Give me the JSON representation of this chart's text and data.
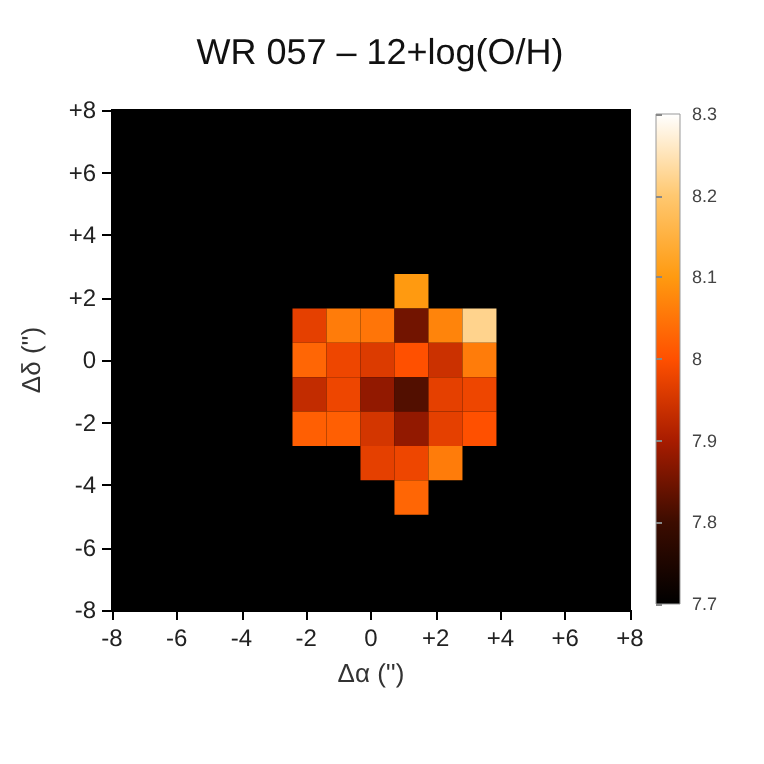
{
  "chart_data": {
    "type": "scatter",
    "title": "WR 057 – 12+log(O/H)",
    "xlabel": "Δα ('')",
    "ylabel": "Δδ ('')",
    "marker": "square",
    "x": [
      1.25,
      -1.9,
      -0.85,
      0.2,
      1.25,
      2.3,
      3.35,
      -1.9,
      -0.85,
      0.2,
      1.25,
      2.3,
      3.35,
      -1.9,
      -0.85,
      0.2,
      1.25,
      2.3,
      3.35,
      -1.9,
      -0.85,
      0.2,
      1.25,
      2.3,
      3.35,
      0.2,
      1.25,
      2.3,
      1.25
    ],
    "values": [
      2.2,
      1.1,
      1.1,
      1.1,
      1.1,
      1.1,
      1.1,
      0,
      0,
      0,
      0,
      0,
      0,
      -1.1,
      -1.1,
      -1.1,
      -1.1,
      -1.1,
      -1.1,
      -2.2,
      -2.2,
      -2.2,
      -2.2,
      -2.2,
      -2.2,
      -3.3,
      -3.3,
      -3.3,
      -4.4
    ],
    "cvalues": [
      8.1,
      7.97,
      8.06,
      8.05,
      7.85,
      8.07,
      8.22,
      8.03,
      7.98,
      7.96,
      8.0,
      7.94,
      8.06,
      7.93,
      7.98,
      7.88,
      7.82,
      7.97,
      7.98,
      8.02,
      8.02,
      7.95,
      7.88,
      7.97,
      8.0,
      7.97,
      7.98,
      8.06,
      8.03
    ],
    "xlim": [
      -8,
      8
    ],
    "ylim": [
      -8,
      8
    ],
    "xticks": [
      -8,
      -6,
      -4,
      -2,
      0,
      {
        "value": 2,
        "label": "+2"
      },
      {
        "value": 4,
        "label": "+4"
      },
      {
        "value": 6,
        "label": "+6"
      },
      {
        "value": 8,
        "label": "+8"
      }
    ],
    "yticks": [
      -8,
      -6,
      -4,
      -2,
      0,
      {
        "value": 2,
        "label": "+2"
      },
      {
        "value": 4,
        "label": "+4"
      },
      {
        "value": 6,
        "label": "+6"
      },
      {
        "value": 8,
        "label": "+8"
      }
    ],
    "clim": [
      7.7,
      8.3
    ],
    "cticks": [
      7.7,
      7.8,
      7.9,
      8,
      8.1,
      8.2,
      8.3
    ],
    "grid": false
  }
}
